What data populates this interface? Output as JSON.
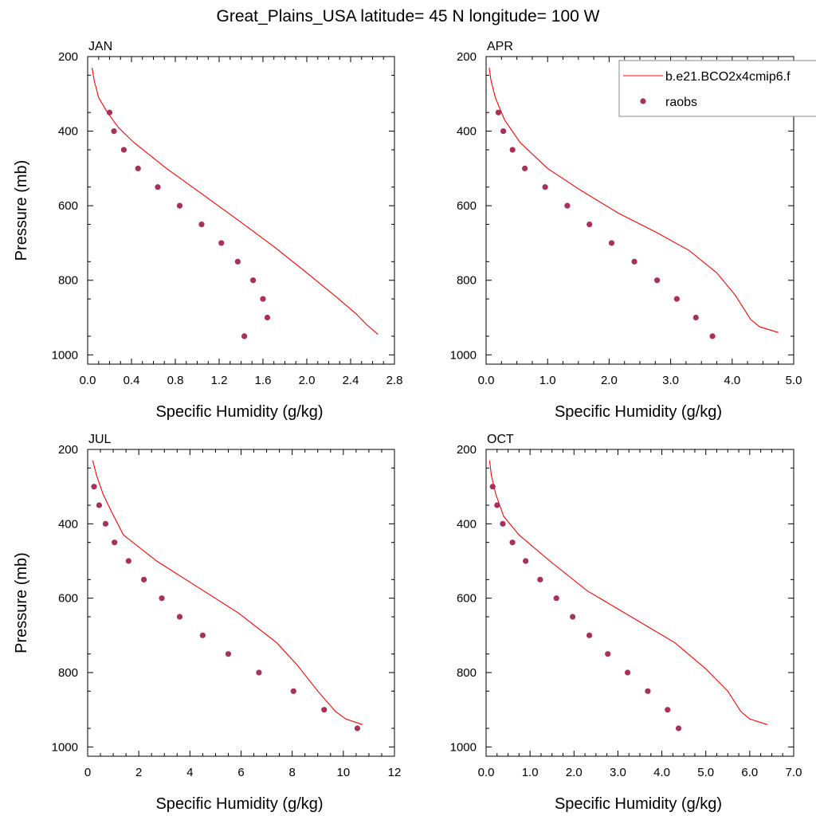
{
  "figure": {
    "title": "Great_Plains_USA  latitude= 45 N longitude= 100 W"
  },
  "legend": {
    "entries": [
      {
        "label": "b.e21.BCO2x4cmip6.f",
        "kind": "line",
        "color": "#ff0000"
      },
      {
        "label": "raobs",
        "kind": "marker",
        "color": "#a8305a"
      }
    ]
  },
  "chart_data": [
    {
      "type": "line",
      "title": "JAN",
      "xlabel": "Specific Humidity (g/kg)",
      "ylabel": "Pressure (mb)",
      "xlim": [
        0,
        2.8
      ],
      "ylim": [
        200,
        1025
      ],
      "y_inverted": true,
      "xticks": [
        0,
        0.4,
        0.8,
        1.2,
        1.6,
        2.0,
        2.4,
        2.8
      ],
      "xtick_labels": [
        "0.0",
        "0.4",
        "0.8",
        "1.2",
        "1.6",
        "2.0",
        "2.4",
        "2.8"
      ],
      "yticks": [
        200,
        400,
        600,
        800,
        1000
      ],
      "ytick_labels": [
        "200",
        "400",
        "600",
        "800",
        "1000"
      ],
      "series": [
        {
          "name": "b.e21.BCO2x4cmip6.f",
          "kind": "line",
          "color": "#ff0000",
          "x": [
            0.04,
            0.06,
            0.1,
            0.18,
            0.28,
            0.42,
            0.72,
            1.05,
            1.38,
            1.7,
            2.0,
            2.25,
            2.45,
            2.55,
            2.65
          ],
          "y": [
            230,
            265,
            310,
            350,
            390,
            430,
            500,
            570,
            640,
            710,
            780,
            840,
            890,
            920,
            945
          ]
        },
        {
          "name": "raobs",
          "kind": "scatter",
          "color": "#a8305a",
          "x": [
            0.2,
            0.24,
            0.33,
            0.46,
            0.64,
            0.84,
            1.04,
            1.22,
            1.37,
            1.51,
            1.6,
            1.64,
            1.43
          ],
          "y": [
            350,
            400,
            450,
            500,
            550,
            600,
            650,
            700,
            750,
            800,
            850,
            900,
            950
          ]
        }
      ]
    },
    {
      "type": "line",
      "title": "APR",
      "xlabel": "Specific Humidity (g/kg)",
      "ylabel": "",
      "xlim": [
        0,
        5.0
      ],
      "ylim": [
        200,
        1025
      ],
      "y_inverted": true,
      "xticks": [
        0,
        1,
        2,
        3,
        4,
        5
      ],
      "xtick_labels": [
        "0.0",
        "1.0",
        "2.0",
        "3.0",
        "4.0",
        "5.0"
      ],
      "yticks": [
        200,
        400,
        600,
        800,
        1000
      ],
      "ytick_labels": [
        "200",
        "400",
        "600",
        "800",
        "1000"
      ],
      "series": [
        {
          "name": "b.e21.BCO2x4cmip6.f",
          "kind": "line",
          "color": "#ff0000",
          "x": [
            0.05,
            0.08,
            0.15,
            0.3,
            0.55,
            1.0,
            1.55,
            2.15,
            2.75,
            3.3,
            3.75,
            4.05,
            4.3,
            4.45,
            4.75
          ],
          "y": [
            230,
            265,
            310,
            370,
            430,
            500,
            560,
            620,
            670,
            720,
            780,
            840,
            905,
            925,
            940
          ]
        },
        {
          "name": "raobs",
          "kind": "scatter",
          "color": "#a8305a",
          "x": [
            0.2,
            0.28,
            0.43,
            0.63,
            0.96,
            1.32,
            1.68,
            2.04,
            2.41,
            2.78,
            3.1,
            3.41,
            3.68
          ],
          "y": [
            350,
            400,
            450,
            500,
            550,
            600,
            650,
            700,
            750,
            800,
            850,
            900,
            950
          ]
        }
      ]
    },
    {
      "type": "line",
      "title": "JUL",
      "xlabel": "Specific Humidity (g/kg)",
      "ylabel": "Pressure (mb)",
      "xlim": [
        0,
        12
      ],
      "ylim": [
        200,
        1025
      ],
      "y_inverted": true,
      "xticks": [
        0,
        2,
        4,
        6,
        8,
        10,
        12
      ],
      "xtick_labels": [
        "0",
        "2",
        "4",
        "6",
        "8",
        "10",
        "12"
      ],
      "yticks": [
        200,
        400,
        600,
        800,
        1000
      ],
      "ytick_labels": [
        "200",
        "400",
        "600",
        "800",
        "1000"
      ],
      "series": [
        {
          "name": "b.e21.BCO2x4cmip6.f",
          "kind": "line",
          "color": "#ff0000",
          "x": [
            0.2,
            0.35,
            0.6,
            0.95,
            1.4,
            2.7,
            4.3,
            5.9,
            7.4,
            8.2,
            9.0,
            9.7,
            10.1,
            10.75
          ],
          "y": [
            230,
            270,
            320,
            370,
            430,
            500,
            570,
            640,
            720,
            780,
            850,
            905,
            925,
            940
          ]
        },
        {
          "name": "raobs",
          "kind": "scatter",
          "color": "#a8305a",
          "x": [
            0.25,
            0.45,
            0.7,
            1.05,
            1.6,
            2.2,
            2.9,
            3.6,
            4.5,
            5.5,
            6.7,
            8.05,
            9.25,
            10.55
          ],
          "y": [
            300,
            350,
            400,
            450,
            500,
            550,
            600,
            650,
            700,
            750,
            800,
            850,
            900,
            950
          ]
        }
      ]
    },
    {
      "type": "line",
      "title": "OCT",
      "xlabel": "Specific Humidity (g/kg)",
      "ylabel": "",
      "xlim": [
        0,
        7.0
      ],
      "ylim": [
        200,
        1025
      ],
      "y_inverted": true,
      "xticks": [
        0,
        1,
        2,
        3,
        4,
        5,
        6,
        7
      ],
      "xtick_labels": [
        "0.0",
        "1.0",
        "2.0",
        "3.0",
        "4.0",
        "5.0",
        "6.0",
        "7.0"
      ],
      "yticks": [
        200,
        400,
        600,
        800,
        1000
      ],
      "ytick_labels": [
        "200",
        "400",
        "600",
        "800",
        "1000"
      ],
      "series": [
        {
          "name": "b.e21.BCO2x4cmip6.f",
          "kind": "line",
          "color": "#ff0000",
          "x": [
            0.08,
            0.12,
            0.22,
            0.4,
            0.75,
            1.45,
            2.3,
            3.3,
            4.3,
            5.0,
            5.5,
            5.8,
            6.0,
            6.4
          ],
          "y": [
            230,
            270,
            320,
            380,
            430,
            500,
            580,
            650,
            720,
            790,
            850,
            905,
            925,
            940
          ]
        },
        {
          "name": "raobs",
          "kind": "scatter",
          "color": "#a8305a",
          "x": [
            0.15,
            0.25,
            0.38,
            0.6,
            0.9,
            1.23,
            1.6,
            1.97,
            2.35,
            2.77,
            3.22,
            3.68,
            4.13,
            4.38
          ],
          "y": [
            300,
            350,
            400,
            450,
            500,
            550,
            600,
            650,
            700,
            750,
            800,
            850,
            900,
            950
          ]
        }
      ]
    }
  ]
}
